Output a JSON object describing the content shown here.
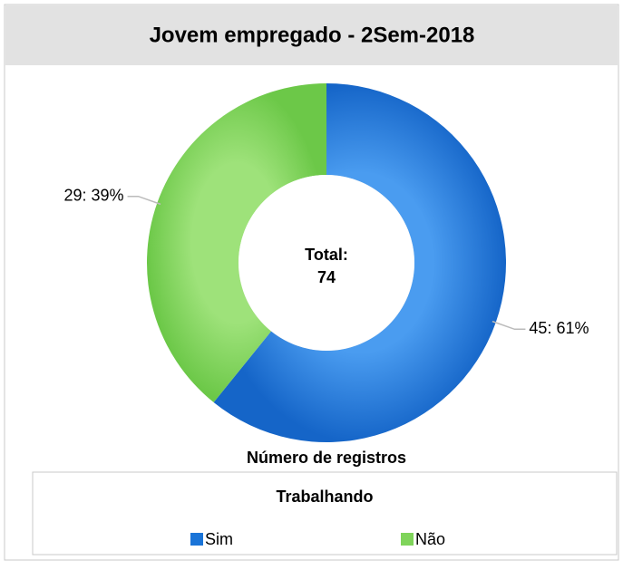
{
  "chart_data": {
    "type": "pie",
    "title": "Jovem empregado - 2Sem-2018",
    "categories": [
      "Sim",
      "Não"
    ],
    "values": [
      45,
      29
    ],
    "value_labels": [
      "45: 61%",
      "29: 39%"
    ],
    "colors": [
      "#1a74d8",
      "#7fd45a"
    ],
    "donut": true,
    "center_label": "Total:",
    "total": 74,
    "xlabel": "Número de registros",
    "legend_title": "Trabalhando",
    "legend": "bottom"
  }
}
